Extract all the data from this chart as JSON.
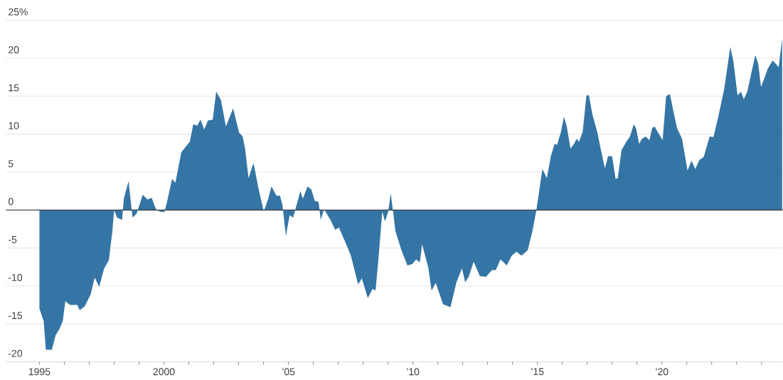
{
  "chart_data": {
    "type": "area",
    "x": [
      1995.0,
      1995.17,
      1995.26,
      1995.4,
      1995.5,
      1995.65,
      1995.8,
      1995.94,
      1996.04,
      1996.23,
      1996.52,
      1996.62,
      1996.82,
      1997.06,
      1997.22,
      1997.4,
      1997.6,
      1997.79,
      1997.93,
      1998.0,
      1998.12,
      1998.32,
      1998.39,
      1998.58,
      1998.74,
      1998.9,
      1999.15,
      1999.34,
      1999.51,
      1999.68,
      1999.83,
      2000.02,
      2000.12,
      2000.33,
      2000.46,
      2000.7,
      2000.89,
      2001.04,
      2001.18,
      2001.33,
      2001.47,
      2001.62,
      2001.77,
      2001.96,
      2002.1,
      2002.29,
      2002.49,
      2002.78,
      2003.02,
      2003.16,
      2003.26,
      2003.4,
      2003.6,
      2003.79,
      2004.01,
      2004.18,
      2004.32,
      2004.52,
      2004.66,
      2004.76,
      2004.9,
      2005.05,
      2005.19,
      2005.48,
      2005.58,
      2005.77,
      2005.92,
      2006.06,
      2006.21,
      2006.3,
      2006.43,
      2006.69,
      2006.88,
      2007.03,
      2007.27,
      2007.51,
      2007.8,
      2007.95,
      2008.19,
      2008.38,
      2008.5,
      2008.62,
      2008.77,
      2008.88,
      2009.01,
      2009.11,
      2009.2,
      2009.3,
      2009.54,
      2009.78,
      2009.98,
      2010.13,
      2010.28,
      2010.37,
      2010.62,
      2010.75,
      2010.92,
      2011.21,
      2011.51,
      2011.75,
      2011.97,
      2012.1,
      2012.24,
      2012.44,
      2012.69,
      2012.93,
      2013.18,
      2013.33,
      2013.52,
      2013.77,
      2013.97,
      2014.16,
      2014.36,
      2014.61,
      2014.8,
      2014.95,
      2015.05,
      2015.2,
      2015.38,
      2015.54,
      2015.69,
      2015.79,
      2015.94,
      2016.07,
      2016.18,
      2016.33,
      2016.47,
      2016.58,
      2016.67,
      2016.82,
      2016.97,
      2017.07,
      2017.21,
      2017.41,
      2017.56,
      2017.71,
      2017.84,
      2018.0,
      2018.14,
      2018.23,
      2018.38,
      2018.57,
      2018.72,
      2018.87,
      2018.96,
      2019.09,
      2019.2,
      2019.35,
      2019.5,
      2019.61,
      2019.71,
      2019.83,
      2020.03,
      2020.17,
      2020.32,
      2020.47,
      2020.61,
      2020.81,
      2021.03,
      2021.19,
      2021.34,
      2021.51,
      2021.68,
      2021.92,
      2022.07,
      2022.26,
      2022.5,
      2022.75,
      2022.87,
      2023.04,
      2023.18,
      2023.29,
      2023.43,
      2023.75,
      2023.87,
      2023.98,
      2024.11,
      2024.25,
      2024.45,
      2024.59,
      2024.69,
      2024.83
    ],
    "values": [
      -13.0,
      -14.6,
      -18.4,
      -18.4,
      -18.4,
      -16.5,
      -15.7,
      -14.6,
      -12.0,
      -12.5,
      -12.5,
      -13.2,
      -12.7,
      -11.1,
      -8.9,
      -10.1,
      -7.7,
      -6.6,
      -2.8,
      0,
      -1.0,
      -1.3,
      1.5,
      3.8,
      -1.0,
      -0.5,
      2.0,
      1.4,
      1.6,
      0.1,
      -0.2,
      -0.3,
      1.0,
      4.1,
      3.6,
      7.6,
      8.4,
      9.0,
      11.3,
      11.1,
      11.9,
      10.6,
      11.8,
      11.9,
      15.6,
      14.5,
      11.0,
      13.4,
      10.2,
      9.7,
      8.1,
      4.2,
      6.2,
      3.0,
      -0.2,
      1.4,
      3.1,
      1.9,
      1.9,
      0.7,
      -3.4,
      -0.7,
      -1.0,
      2.5,
      1.5,
      3.1,
      2.7,
      1.2,
      1.1,
      -1.3,
      0.1,
      -1.3,
      -2.6,
      -2.3,
      -4.1,
      -6.0,
      -9.8,
      -9.0,
      -11.6,
      -10.4,
      -10.6,
      -6.3,
      -0.2,
      -1.5,
      -0.2,
      2.2,
      -0.1,
      -2.8,
      -5.3,
      -7.3,
      -7.1,
      -6.5,
      -6.9,
      -4.5,
      -7.6,
      -10.6,
      -9.6,
      -12.4,
      -12.8,
      -9.5,
      -7.7,
      -9.5,
      -8.8,
      -6.8,
      -8.7,
      -8.8,
      -7.9,
      -7.9,
      -6.5,
      -7.3,
      -6.0,
      -5.5,
      -6.0,
      -5.3,
      -2.8,
      -0.2,
      2.0,
      5.4,
      4.2,
      7.1,
      8.7,
      8.6,
      10.2,
      12.3,
      11.0,
      8.1,
      8.7,
      9.4,
      9.0,
      10.3,
      15.1,
      15.1,
      12.6,
      10.2,
      7.8,
      5.5,
      7.1,
      7.1,
      4.1,
      4.2,
      7.9,
      9.0,
      9.7,
      11.3,
      10.8,
      8.7,
      9.4,
      9.7,
      9.2,
      10.8,
      11.0,
      10.3,
      9.2,
      15.0,
      15.3,
      12.9,
      10.8,
      9.4,
      5.2,
      6.5,
      5.4,
      6.6,
      7.0,
      9.7,
      9.6,
      12.2,
      15.9,
      21.5,
      19.6,
      15.1,
      15.6,
      14.6,
      15.6,
      20.4,
      19.3,
      16.2,
      17.3,
      18.6,
      19.7,
      19.2,
      18.8,
      22.6
    ],
    "color": "#3575a5",
    "xlim": [
      1993.66,
      2024.85
    ],
    "xticks": [
      1995,
      {
        "value": 1996,
        "label": null
      },
      {
        "value": 1997,
        "label": null
      },
      {
        "value": 1998,
        "label": null
      },
      {
        "value": 1999,
        "label": null
      },
      2000,
      {
        "value": 2001,
        "label": null
      },
      {
        "value": 2002,
        "label": null
      },
      {
        "value": 2003,
        "label": null
      },
      {
        "value": 2004,
        "label": null
      },
      {
        "value": 2005,
        "label": "’05"
      },
      {
        "value": 2006,
        "label": null
      },
      {
        "value": 2007,
        "label": null
      },
      {
        "value": 2008,
        "label": null
      },
      {
        "value": 2009,
        "label": null
      },
      {
        "value": 2010,
        "label": "’10"
      },
      {
        "value": 2011,
        "label": null
      },
      {
        "value": 2012,
        "label": null
      },
      {
        "value": 2013,
        "label": null
      },
      {
        "value": 2014,
        "label": null
      },
      {
        "value": 2015,
        "label": "’15"
      },
      {
        "value": 2016,
        "label": null
      },
      {
        "value": 2017,
        "label": null
      },
      {
        "value": 2018,
        "label": null
      },
      {
        "value": 2019,
        "label": null
      },
      {
        "value": 2020,
        "label": "’20"
      },
      {
        "value": 2021,
        "label": null
      },
      {
        "value": 2022,
        "label": null
      },
      {
        "value": 2023,
        "label": null
      },
      {
        "value": 2024,
        "label": null
      }
    ],
    "ylim": [
      -20,
      25
    ],
    "yticks": [
      -20,
      -15,
      -10,
      -5,
      0,
      5,
      10,
      15,
      20,
      {
        "value": 25,
        "label": "25%"
      }
    ],
    "grid": "y",
    "ref_lines": [
      {
        "axis": "y",
        "value": 0,
        "color": "#222222"
      }
    ]
  }
}
